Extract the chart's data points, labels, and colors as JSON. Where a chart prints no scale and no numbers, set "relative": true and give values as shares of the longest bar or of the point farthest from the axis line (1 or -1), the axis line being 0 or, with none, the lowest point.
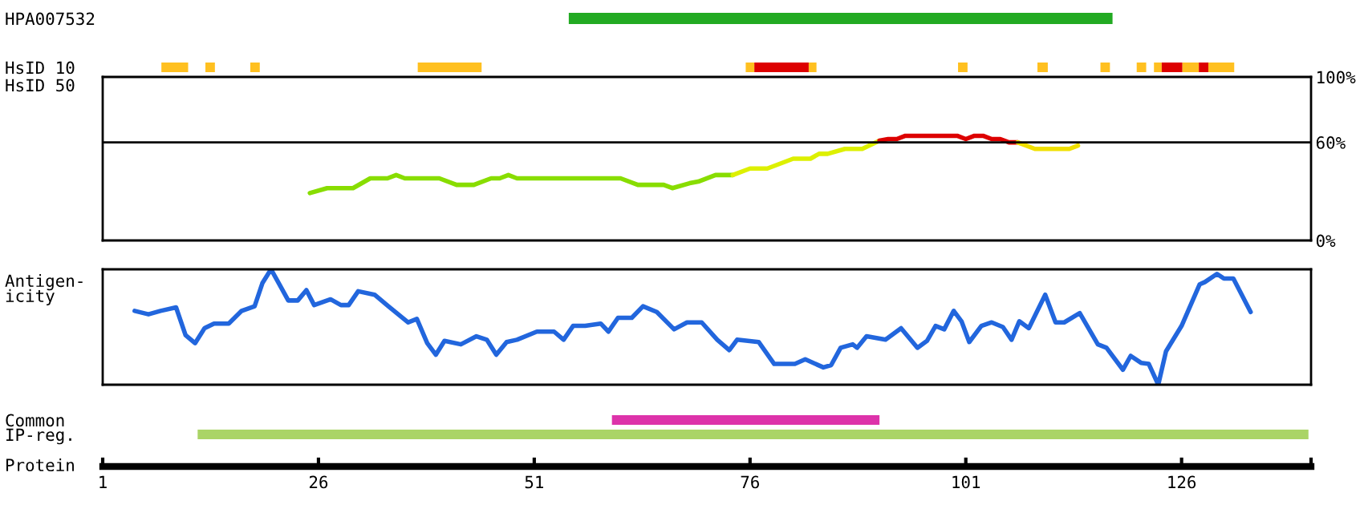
{
  "chart_data": [
    {
      "type": "bar",
      "orientation": "horizontal",
      "categories": [
        "HPA007532"
      ],
      "xlim": [
        1,
        141
      ],
      "tick_labels": "y",
      "series": [
        {
          "color": "#22aa22",
          "base": [
            55
          ],
          "values": [
            63
          ]
        }
      ]
    },
    {
      "type": "bar",
      "orientation": "horizontal",
      "categories": [
        "HsID 10"
      ],
      "xlim": [
        1,
        141
      ],
      "tick_labels": "y",
      "series": [
        {
          "color": "#ffc020",
          "base": [
            7.8
          ],
          "values": [
            3.1
          ]
        },
        {
          "color": "#ffc020",
          "base": [
            12.9
          ],
          "values": [
            1.1
          ]
        },
        {
          "color": "#ffc020",
          "base": [
            18.1
          ],
          "values": [
            1.1
          ]
        },
        {
          "color": "#ffc020",
          "base": [
            37.5
          ],
          "values": [
            7.4
          ]
        },
        {
          "color": "#ffc020",
          "base": [
            75.5
          ],
          "values": [
            1.0
          ]
        },
        {
          "color": "#dd0000",
          "base": [
            76.5
          ],
          "values": [
            6.3
          ]
        },
        {
          "color": "#ffc020",
          "base": [
            82.8
          ],
          "values": [
            0.9
          ]
        },
        {
          "color": "#ffc020",
          "base": [
            100.1
          ],
          "values": [
            1.1
          ]
        },
        {
          "color": "#ffc020",
          "base": [
            109.3
          ],
          "values": [
            1.2
          ]
        },
        {
          "color": "#ffc020",
          "base": [
            116.6
          ],
          "values": [
            1.1
          ]
        },
        {
          "color": "#ffc020",
          "base": [
            120.8
          ],
          "values": [
            1.1
          ]
        },
        {
          "color": "#ffc020",
          "base": [
            122.8
          ],
          "values": [
            0.9
          ]
        },
        {
          "color": "#dd0000",
          "base": [
            123.7
          ],
          "values": [
            2.4
          ]
        },
        {
          "color": "#ffc020",
          "base": [
            126.1
          ],
          "values": [
            1.9
          ]
        },
        {
          "color": "#dd0000",
          "base": [
            128.0
          ],
          "values": [
            1.1
          ]
        },
        {
          "color": "#ffc020",
          "base": [
            129.1
          ],
          "values": [
            3.0
          ]
        }
      ]
    },
    {
      "type": "line",
      "ylabel": "HsID 50",
      "xlim": [
        1,
        141
      ],
      "ylim": [
        0,
        100
      ],
      "yticks": [
        {
          "value": 0,
          "label": "0%"
        },
        {
          "value": 60,
          "label": "60%"
        },
        {
          "value": 100,
          "label": "100%"
        }
      ],
      "tick_labels": "y",
      "ref_lines": [
        {
          "axis": "y",
          "value": 60,
          "color": "#000000"
        }
      ],
      "series": [
        {
          "color": "#88dd00",
          "x": [
            25,
            27,
            30,
            32,
            34,
            35,
            36,
            40,
            42,
            44,
            46,
            47,
            48,
            49,
            61,
            63,
            66,
            67,
            69,
            70,
            72,
            74
          ],
          "values": [
            29,
            32,
            32,
            38,
            38,
            40,
            38,
            38,
            34,
            34,
            38,
            38,
            40,
            38,
            38,
            34,
            34,
            32,
            35,
            36,
            40,
            40
          ]
        },
        {
          "color": "#ddf000",
          "x": [
            74,
            76,
            78,
            81,
            83,
            84,
            85,
            87,
            89,
            91
          ],
          "values": [
            40,
            44,
            44,
            50,
            50,
            53,
            53,
            56,
            56,
            61
          ]
        },
        {
          "color": "#dd0000",
          "x": [
            91,
            92,
            93,
            94,
            100,
            101,
            102,
            103,
            104,
            105,
            106,
            107
          ],
          "values": [
            61,
            62,
            62,
            64,
            64,
            62,
            64,
            64,
            62,
            62,
            60,
            60
          ]
        },
        {
          "color": "#f0e000",
          "x": [
            107,
            109,
            113,
            114
          ],
          "values": [
            60,
            56,
            56,
            58
          ]
        }
      ]
    },
    {
      "type": "line",
      "ylabel": "Antigen-\nicity",
      "xlim": [
        1,
        141
      ],
      "relative": true,
      "series": [
        {
          "color": "#2266dd",
          "x": [
            4.7,
            6.3,
            7.7,
            9.5,
            10.6,
            11.7,
            12.8,
            13.9,
            15.6,
            17.1,
            18.6,
            19.5,
            20.5,
            21.4,
            22.5,
            23.6,
            24.6,
            25.5,
            27.4,
            28.6,
            29.5,
            30.6,
            32.5,
            34.1,
            36.4,
            37.4,
            38.6,
            39.6,
            40.6,
            42.5,
            44.3,
            45.5,
            46.6,
            47.8,
            49.0,
            51.3,
            53.3,
            54.4,
            55.5,
            56.9,
            58.7,
            59.6,
            60.7,
            62.3,
            63.6,
            65.2,
            67.2,
            68.7,
            70.4,
            72.2,
            73.6,
            74.5,
            77.0,
            78.8,
            81.2,
            82.4,
            84.5,
            85.4,
            86.5,
            87.9,
            88.4,
            89.5,
            91.7,
            93.5,
            95.4,
            96.5,
            97.5,
            98.5,
            99.6,
            100.5,
            101.4,
            102.8,
            104.0,
            105.3,
            106.3,
            107.2,
            108.3,
            110.2,
            111.4,
            112.4,
            114.2,
            116.3,
            117.3,
            119.2,
            120.1,
            121.3,
            122.2,
            123.3,
            124.2,
            126.0,
            128.1,
            128.7,
            130.1,
            130.9,
            132.0,
            134.0
          ],
          "values": [
            0.64,
            0.61,
            0.64,
            0.67,
            0.43,
            0.36,
            0.49,
            0.53,
            0.53,
            0.64,
            0.68,
            0.88,
            1,
            0.88,
            0.73,
            0.73,
            0.82,
            0.69,
            0.74,
            0.69,
            0.69,
            0.81,
            0.78,
            0.68,
            0.54,
            0.57,
            0.36,
            0.26,
            0.38,
            0.35,
            0.42,
            0.39,
            0.26,
            0.37,
            0.39,
            0.46,
            0.46,
            0.39,
            0.51,
            0.51,
            0.53,
            0.46,
            0.58,
            0.58,
            0.68,
            0.63,
            0.48,
            0.54,
            0.54,
            0.39,
            0.3,
            0.39,
            0.37,
            0.18,
            0.18,
            0.22,
            0.15,
            0.17,
            0.32,
            0.35,
            0.32,
            0.42,
            0.39,
            0.49,
            0.32,
            0.38,
            0.51,
            0.48,
            0.64,
            0.55,
            0.37,
            0.51,
            0.54,
            0.5,
            0.39,
            0.55,
            0.49,
            0.78,
            0.54,
            0.54,
            0.62,
            0.35,
            0.32,
            0.13,
            0.25,
            0.19,
            0.18,
            0.0,
            0.29,
            0.51,
            0.87,
            0.89,
            0.96,
            0.92,
            0.92,
            0.63
          ]
        }
      ]
    },
    {
      "type": "bar",
      "orientation": "horizontal",
      "categories": [
        "Common",
        "IP-reg."
      ],
      "xlabel": "Protein",
      "xlim": [
        1,
        141
      ],
      "xticks": [
        1,
        26,
        51,
        76,
        101,
        126,
        {
          "value": 141,
          "label": null
        }
      ],
      "series": [
        {
          "color": "#dd33aa",
          "base": [
            60,
            null
          ],
          "values": [
            31,
            null
          ]
        },
        {
          "color": "#aad466",
          "base": [
            null,
            12
          ],
          "values": [
            null,
            128.7
          ]
        }
      ]
    }
  ]
}
